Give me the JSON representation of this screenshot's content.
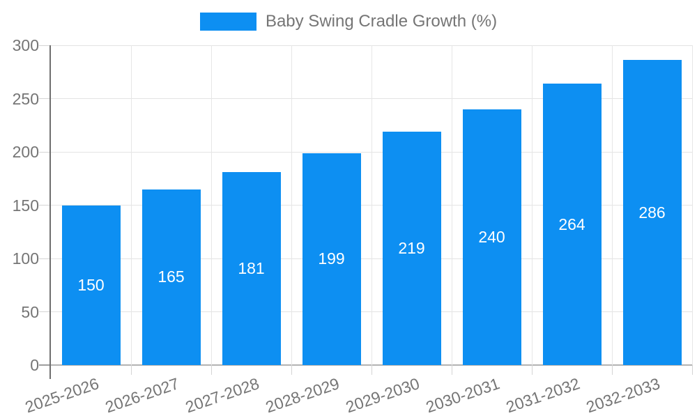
{
  "legend": {
    "label": "Baby Swing Cradle Growth (%)"
  },
  "chart_data": {
    "type": "bar",
    "title": "",
    "xlabel": "",
    "ylabel": "",
    "categories": [
      "2025-2026",
      "2026-2027",
      "2027-2028",
      "2028-2029",
      "2029-2030",
      "2030-2031",
      "2031-2032",
      "2032-2033"
    ],
    "series": [
      {
        "name": "Baby Swing Cradle Growth (%)",
        "values": [
          150,
          165,
          181,
          199,
          219,
          240,
          264,
          286
        ]
      }
    ],
    "value_labels_shown": true,
    "ylim": [
      0,
      300
    ],
    "yticks": [
      0,
      50,
      100,
      150,
      200,
      250,
      300
    ],
    "grid": true,
    "legend_position": "top-center",
    "x_label_rotation_deg": -19,
    "colors": {
      "bar": "#0d8ff2",
      "value_label": "#ffffff",
      "axis_text": "#757575",
      "gridline": "#e3e3e3",
      "vertical_gridline": "#e6e6e6",
      "axis_line": "#6e6e6e",
      "baseline": "#b3b3b3",
      "zero_tick": "#9e9e9e",
      "tick": "#d4d4d4",
      "background": "#ffffff"
    }
  }
}
